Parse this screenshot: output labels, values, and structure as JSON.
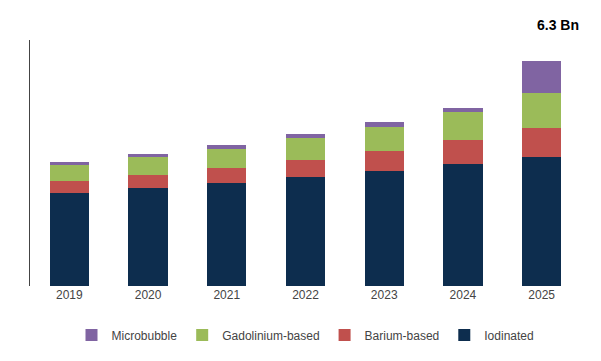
{
  "chart_data": {
    "type": "bar",
    "stacked": true,
    "categories": [
      "2019",
      "2020",
      "2021",
      "2022",
      "2023",
      "2024",
      "2025"
    ],
    "series": [
      {
        "name": "Iodinated",
        "color": "#0d2d4e",
        "values": [
          2.2,
          2.3,
          2.42,
          2.58,
          2.7,
          2.88,
          3.05
        ]
      },
      {
        "name": "Barium-based",
        "color": "#c0504d",
        "values": [
          0.28,
          0.32,
          0.36,
          0.4,
          0.48,
          0.56,
          0.68
        ]
      },
      {
        "name": "Gadolinium-based",
        "color": "#9bbb59",
        "values": [
          0.38,
          0.42,
          0.46,
          0.5,
          0.58,
          0.66,
          0.82
        ]
      },
      {
        "name": "Microbubble",
        "color": "#8064a2",
        "values": [
          0.06,
          0.08,
          0.09,
          0.1,
          0.1,
          0.1,
          0.75
        ]
      }
    ],
    "ylim": [
      0,
      5.8
    ],
    "tick_labels": "x",
    "grid": false,
    "legend": "bottom",
    "annotation": "6.3 Bn"
  }
}
